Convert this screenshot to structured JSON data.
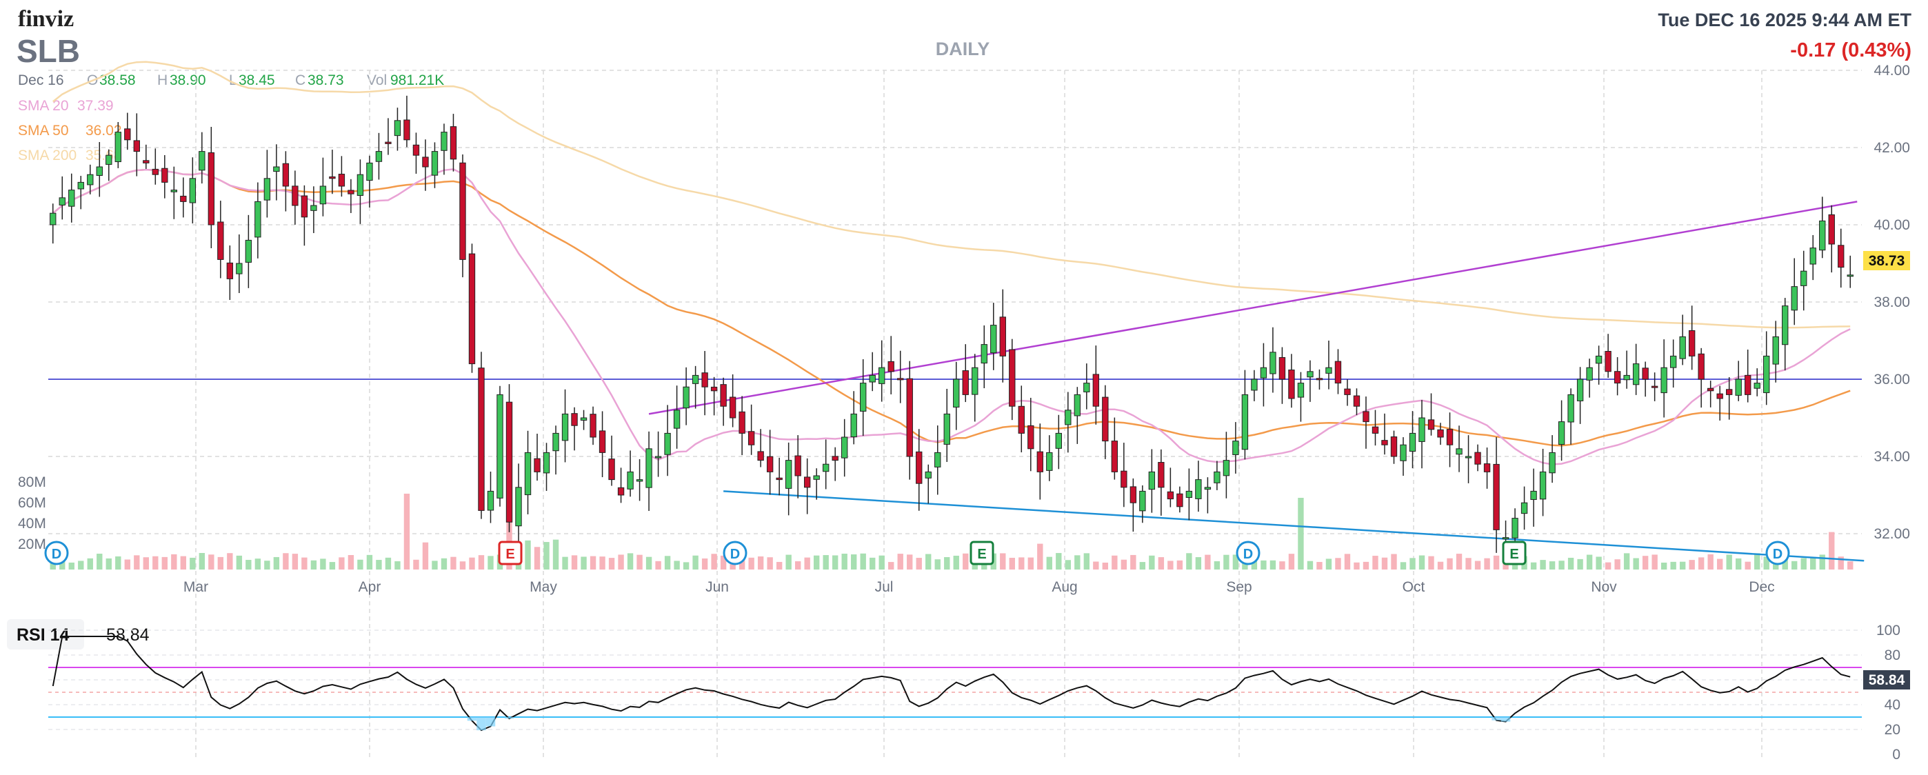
{
  "header": {
    "logo": "finviz",
    "ticker": "SLB",
    "timeframe": "DAILY",
    "datetime": "Tue DEC 16 2025 9:44 AM ET",
    "change": "-0.17 (0.43%)",
    "ohlc": {
      "date": "Dec 16",
      "o_label": "O",
      "o": "38.58",
      "h_label": "H",
      "h": "38.90",
      "l_label": "L",
      "l": "38.45",
      "c_label": "C",
      "c": "38.73",
      "vol_label": "Vol",
      "vol": "981.21K"
    },
    "sma": [
      {
        "label": "SMA 20",
        "value": "37.39",
        "color": "#e9a3d5"
      },
      {
        "label": "SMA 50",
        "value": "36.02",
        "color": "#f39a4a"
      },
      {
        "label": "SMA 200",
        "value": "35.68",
        "color": "#f6d9a8"
      }
    ]
  },
  "colors": {
    "up": "#22a447",
    "up_fill": "#3cc35a",
    "down": "#c8102e",
    "vol_up": "#a7dfb1",
    "vol_down": "#f7b3ba",
    "upper_trend": "#b13fd1",
    "lower_trend": "#1e90d6",
    "hline": "#5b5bd6",
    "rsi": "#111111",
    "rsi_upper": "#d946ef",
    "rsi_lower": "#38bdf8"
  },
  "price_labels": {
    "last": "38.73"
  },
  "rsi": {
    "label": "RSI 14",
    "value": "58.84"
  },
  "chart_data": {
    "type": "candlestick",
    "ylim": [
      31,
      44
    ],
    "y_ticks": [
      "32.00",
      "34.00",
      "36.00",
      "38.00",
      "40.00",
      "42.00",
      "44.00"
    ],
    "x_ticks": [
      "Mar",
      "Apr",
      "May",
      "Jun",
      "Jul",
      "Aug",
      "Sep",
      "Oct",
      "Nov",
      "Dec"
    ],
    "volume_ticks": [
      "20M",
      "40M",
      "60M",
      "80M"
    ],
    "horizontal_level": 36.0,
    "candles_close": [
      40.3,
      40.7,
      40.9,
      41.1,
      41.3,
      41.5,
      41.8,
      42.4,
      42.2,
      41.9,
      41.6,
      41.3,
      41.1,
      40.9,
      40.6,
      41.2,
      41.9,
      40.0,
      39.1,
      38.6,
      39.0,
      39.6,
      40.6,
      41.2,
      41.5,
      41.0,
      40.5,
      40.2,
      40.5,
      41.0,
      41.2,
      41.0,
      40.8,
      41.3,
      41.6,
      41.9,
      42.1,
      42.7,
      42.2,
      41.8,
      41.5,
      41.9,
      42.4,
      41.7,
      39.1,
      36.4,
      32.6,
      33.1,
      35.6,
      32.3,
      33.2,
      34.1,
      33.6,
      34.1,
      34.6,
      35.1,
      34.8,
      35.0,
      34.5,
      34.1,
      33.4,
      33.0,
      33.6,
      33.4,
      34.2,
      34.0,
      34.6,
      35.2,
      35.8,
      36.1,
      35.8,
      35.7,
      35.3,
      35.0,
      34.6,
      34.3,
      33.9,
      33.6,
      33.4,
      33.9,
      33.5,
      33.2,
      33.5,
      33.8,
      33.9,
      34.5,
      35.1,
      35.9,
      36.1,
      36.3,
      36.2,
      36.0,
      34.0,
      33.3,
      33.6,
      34.1,
      35.1,
      36.0,
      35.6,
      36.3,
      36.9,
      37.4,
      36.6,
      35.3,
      34.6,
      34.2,
      33.6,
      34.1,
      34.6,
      35.2,
      35.6,
      35.9,
      35.3,
      34.4,
      33.6,
      33.2,
      32.8,
      33.1,
      33.6,
      33.2,
      32.9,
      32.7,
      33.1,
      33.4,
      33.2,
      33.6,
      33.9,
      34.4,
      35.6,
      36.0,
      36.3,
      36.7,
      36.0,
      35.5,
      35.9,
      36.2,
      36.0,
      36.3,
      35.9,
      35.6,
      35.3,
      34.9,
      34.6,
      34.3,
      34.0,
      34.3,
      34.6,
      35.0,
      34.7,
      34.5,
      34.3,
      34.2,
      34.0,
      33.8,
      33.6,
      32.1,
      31.9,
      32.4,
      32.8,
      33.1,
      33.6,
      34.1,
      34.9,
      35.6,
      36.0,
      36.3,
      36.6,
      36.2,
      35.9,
      36.1,
      36.4,
      36.0,
      35.8,
      36.3,
      36.6,
      37.1,
      36.6,
      36.0,
      35.7,
      35.5,
      35.6,
      36.0,
      35.6,
      35.9,
      36.6,
      37.1,
      37.9,
      38.4,
      38.8,
      39.4,
      40.1,
      39.5,
      38.9,
      38.7
    ],
    "rsi_ylim": [
      0,
      100
    ],
    "rsi_ticks": [
      "0",
      "20",
      "40",
      "60",
      "80",
      "100"
    ],
    "rsi_levels": [
      70,
      30
    ]
  }
}
